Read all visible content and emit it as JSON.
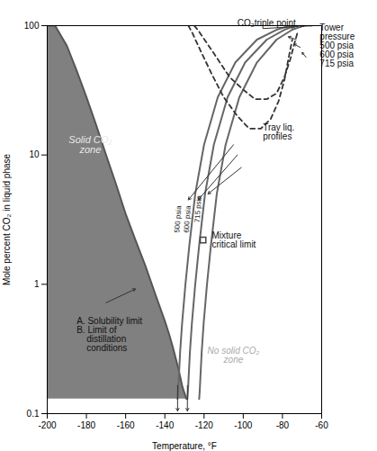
{
  "chart_data": {
    "type": "line",
    "xlabel": "Temperature, °F",
    "ylabel": "Mole percent CO₂ in liquid phase",
    "log": "y",
    "grid": false,
    "xlim": [
      -200,
      -60
    ],
    "ylim": [
      0.1,
      100
    ],
    "xticks": [
      -200,
      -180,
      -160,
      -140,
      -120,
      -100,
      -80,
      -60
    ],
    "yticks": [
      0.1,
      1,
      10,
      100
    ],
    "series": [
      {
        "type": "area",
        "color": "#808080",
        "x": [
          -200,
          -196,
          -190,
          -185,
          -180,
          -175,
          -170,
          -165,
          -160,
          -155,
          -150,
          -145,
          -140,
          -138,
          -136,
          -133,
          -131,
          -129
        ],
        "values": [
          100,
          100,
          70,
          45,
          28,
          17,
          10,
          6,
          3.5,
          2.2,
          1.4,
          0.85,
          0.52,
          0.42,
          0.33,
          0.22,
          0.16,
          0.13
        ]
      },
      {
        "type": "line",
        "color": "#555555",
        "x": [
          -200,
          -196,
          -190,
          -185,
          -180,
          -175,
          -170,
          -165,
          -160,
          -155,
          -150,
          -145,
          -140,
          -138,
          -136,
          -133,
          -131,
          -129
        ],
        "values": [
          100,
          100,
          70,
          45,
          28,
          17,
          10,
          6,
          3.5,
          2.2,
          1.4,
          0.85,
          0.52,
          0.42,
          0.33,
          0.22,
          0.16,
          0.13
        ]
      },
      {
        "type": "line",
        "color": "#666666",
        "x": [
          -133.5,
          -133.2,
          -132.8,
          -132.2,
          -131.2,
          -129.5,
          -127.5,
          -124.5,
          -120,
          -113,
          -104,
          -93,
          -83,
          -77,
          -74,
          -72
        ],
        "values": [
          0.13,
          0.15,
          0.2,
          0.3,
          0.5,
          1.0,
          2.0,
          5.0,
          12,
          28,
          52,
          78,
          93,
          99,
          100,
          100
        ]
      },
      {
        "type": "line",
        "color": "#666666",
        "x": [
          -128.5,
          -128.2,
          -127.8,
          -127.2,
          -126.2,
          -124.5,
          -122.5,
          -119.5,
          -115,
          -108,
          -99,
          -88,
          -79,
          -74,
          -71,
          -69
        ],
        "values": [
          0.13,
          0.15,
          0.2,
          0.3,
          0.5,
          1.0,
          2.0,
          5.0,
          12,
          28,
          52,
          78,
          93,
          99,
          100,
          100
        ]
      },
      {
        "type": "line",
        "color": "#666666",
        "x": [
          -122.5,
          -122.2,
          -121.8,
          -121.2,
          -120.2,
          -118.5,
          -116.5,
          -113.5,
          -109,
          -102,
          -93,
          -83,
          -75,
          -70,
          -67,
          -65
        ],
        "values": [
          0.13,
          0.15,
          0.2,
          0.3,
          0.5,
          1.0,
          2.0,
          5.0,
          12,
          28,
          52,
          78,
          93,
          99,
          100,
          100
        ]
      },
      {
        "type": "line",
        "color": "#333333",
        "line_style": "dashed",
        "x": [
          -128,
          -126,
          -122,
          -116,
          -110,
          -103,
          -97,
          -91,
          -86,
          -82,
          -79,
          -77,
          -75
        ],
        "values": [
          100,
          88,
          65,
          42,
          28,
          20,
          16,
          16,
          19,
          26,
          38,
          55,
          78
        ]
      },
      {
        "type": "line",
        "color": "#333333",
        "line_style": "dashed",
        "x": [
          -125,
          -123,
          -119,
          -113,
          -107,
          -100,
          -94,
          -88,
          -83,
          -79,
          -76,
          -74,
          -72
        ],
        "values": [
          100,
          92,
          75,
          55,
          40,
          32,
          27,
          27,
          30,
          40,
          55,
          72,
          92
        ]
      }
    ],
    "points": [
      {
        "x": -120.5,
        "y": 2.2,
        "marker": "square"
      }
    ],
    "line_labels": [
      {
        "text": "500 psia",
        "x": -133.8,
        "y": 2.5
      },
      {
        "text": "600 psia",
        "x": -129.0,
        "y": 2.5
      },
      {
        "text": "715 psia",
        "x": -123.5,
        "y": 3.0
      }
    ],
    "annotations": [
      {
        "text": "CO₂triple point",
        "x": -103,
        "y": 100
      },
      {
        "text": "Tower\npressure\n500 psia\n600 psia\n715 psia",
        "x": -61,
        "y": 70
      },
      {
        "text": "Tray liq.\nprofiles",
        "x": -90,
        "y": 15
      },
      {
        "text": "Mixture\ncritical limit",
        "x": -116,
        "y": 2.2
      },
      {
        "text": "Solid CO₂\nzone",
        "x": -178,
        "y": 12,
        "color": "#e8e8e8"
      },
      {
        "text": "No solid CO₂\nzone",
        "x": -105,
        "y": 0.28,
        "color": "#aaaaaa"
      },
      {
        "text": "A. Solubility limit\nB. Limit of\n    distillation\n    conditions",
        "x": -185,
        "y": 0.55
      }
    ],
    "arrows": [
      {
        "x1": -133.5,
        "y1": 0.165,
        "x2": -133.5,
        "y2": 0.105
      },
      {
        "x1": -128.5,
        "y1": 0.165,
        "x2": -128.5,
        "y2": 0.105
      },
      {
        "x1": -74,
        "y1": 97,
        "x2": -72,
        "y2": 100
      },
      {
        "x1": -71,
        "y1": 97,
        "x2": -69,
        "y2": 100
      },
      {
        "x1": -90,
        "y1": 95,
        "x2": -74,
        "y2": 98
      },
      {
        "x1": -73,
        "y1": 78,
        "x2": -77,
        "y2": 82
      },
      {
        "x1": -71,
        "y1": 68,
        "x2": -74,
        "y2": 72
      },
      {
        "x1": -68,
        "y1": 57,
        "x2": -70,
        "y2": 62
      },
      {
        "x1": -105,
        "y1": 12,
        "x2": -128,
        "y2": 4.5
      },
      {
        "x1": -103,
        "y1": 10,
        "x2": -123,
        "y2": 4.5
      },
      {
        "x1": -101,
        "y1": 8,
        "x2": -118,
        "y2": 5.0
      },
      {
        "x1": -170,
        "y1": 0.72,
        "x2": -155,
        "y2": 0.92
      }
    ]
  }
}
